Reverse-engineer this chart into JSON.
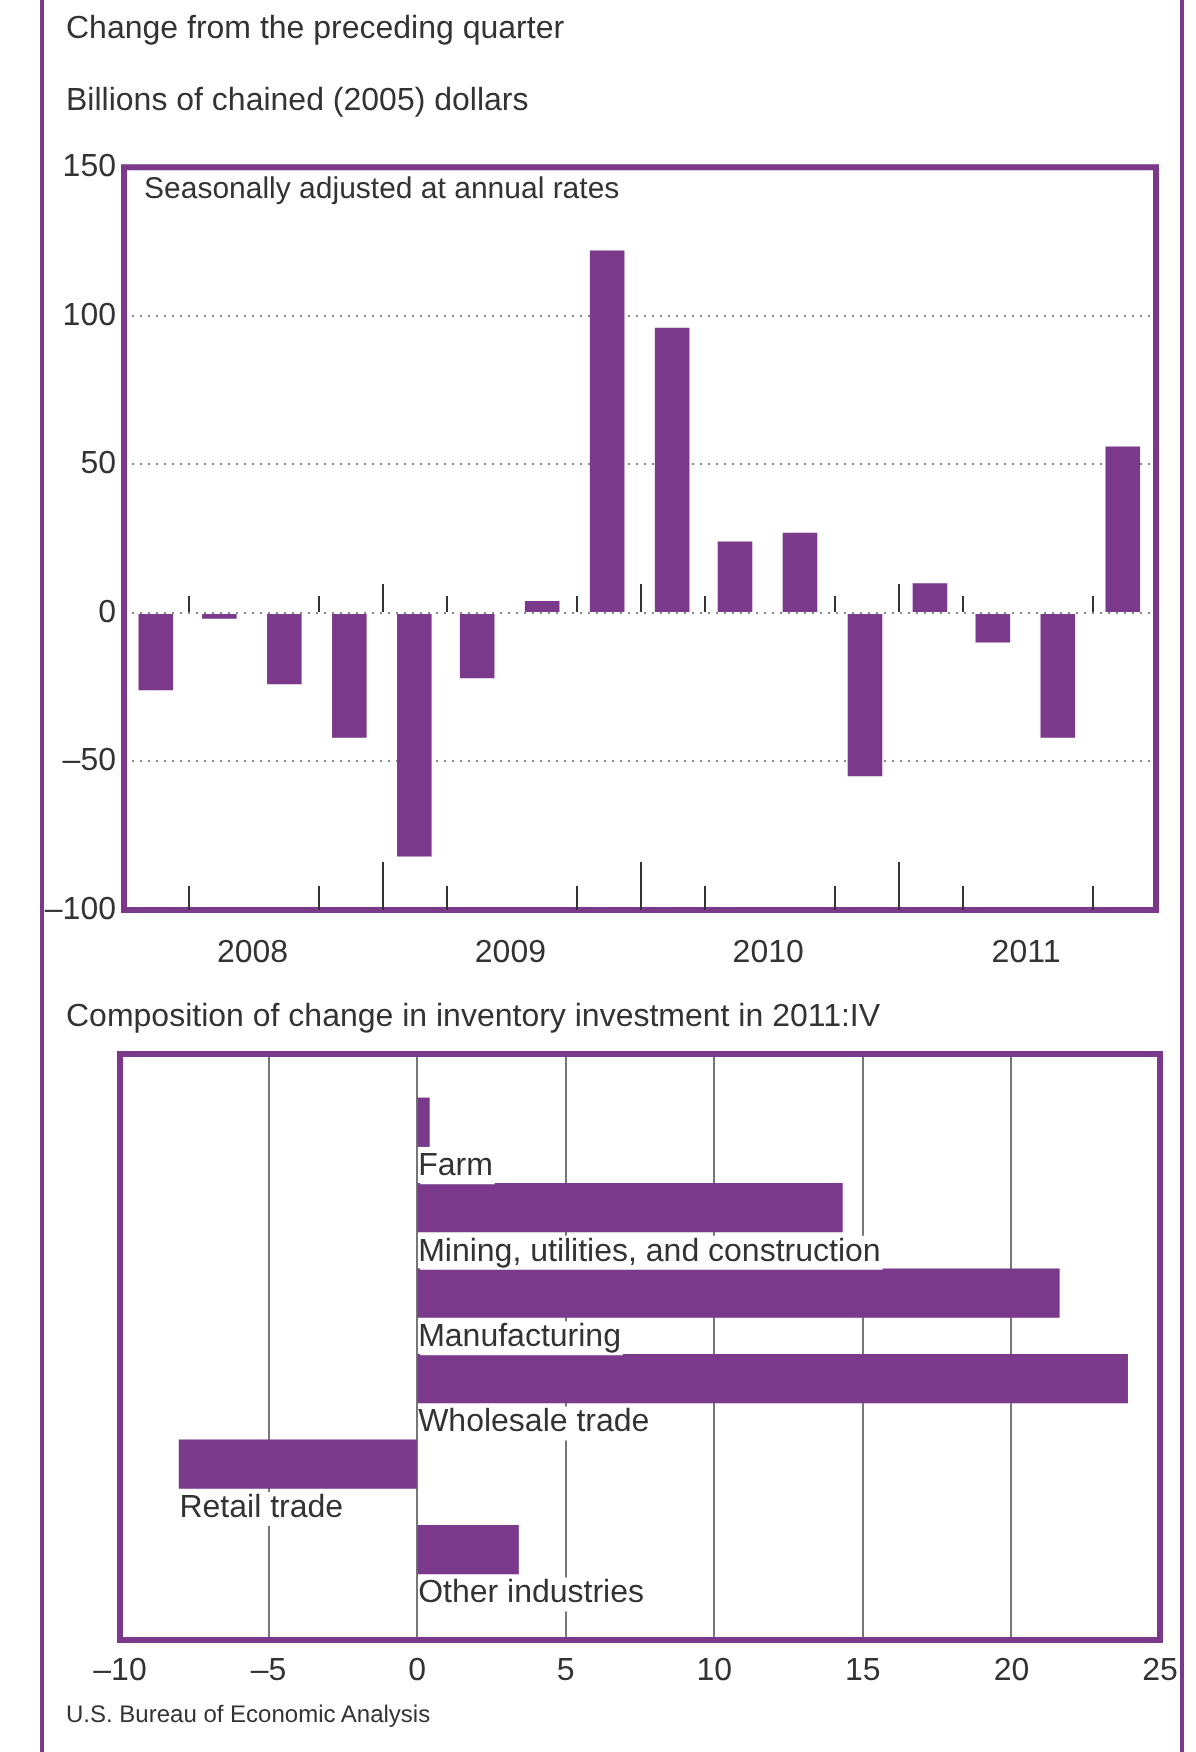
{
  "chart_data": [
    {
      "type": "bar",
      "title": "Change from the preceding quarter",
      "ylabel": "Billions of chained (2005) dollars",
      "annotations": [
        "Seasonally adjusted at annual rates"
      ],
      "x": [
        "2008-02-15",
        "2008-05-15",
        "2008-08-15",
        "2008-11-15",
        "2009-02-15",
        "2009-05-15",
        "2009-08-15",
        "2009-11-15",
        "2010-02-15",
        "2010-05-15",
        "2010-08-15",
        "2010-11-15",
        "2011-02-15",
        "2011-05-15",
        "2011-08-15",
        "2011-11-15"
      ],
      "xlim": [
        "2008-01-01",
        "2012-01-01"
      ],
      "xticks": [
        {
          "value": "2008-04-01",
          "label": null
        },
        {
          "value": "2008-07-01",
          "label": "2008"
        },
        {
          "value": "2008-10-01",
          "label": null
        },
        {
          "value": "2009-01-01",
          "label": null
        },
        {
          "value": "2009-04-01",
          "label": null
        },
        {
          "value": "2009-07-01",
          "label": "2009"
        },
        {
          "value": "2009-10-01",
          "label": null
        },
        {
          "value": "2010-01-01",
          "label": null
        },
        {
          "value": "2010-04-01",
          "label": null
        },
        {
          "value": "2010-07-01",
          "label": "2010"
        },
        {
          "value": "2010-10-01",
          "label": null
        },
        {
          "value": "2011-01-01",
          "label": null
        },
        {
          "value": "2011-04-01",
          "label": null
        },
        {
          "value": "2011-07-01",
          "label": "2011"
        },
        {
          "value": "2011-10-01",
          "label": null
        }
      ],
      "values": [
        -26,
        -2,
        -24,
        -42,
        -82,
        -22,
        4,
        122,
        96,
        24,
        27,
        -55,
        10,
        -10,
        -42,
        56
      ],
      "color": "#7b398b",
      "ylim": [
        -100,
        150
      ],
      "yticks": [
        {
          "value": -100,
          "label": "–100"
        },
        {
          "value": -50,
          "label": "–50"
        },
        0,
        50,
        100,
        150
      ],
      "grid": "y",
      "legend": false
    },
    {
      "type": "bar",
      "orientation": "horizontal",
      "title": "Composition of change in inventory investment in 2011:IV",
      "annotations": [
        "U.S. Bureau of Economic Analysis"
      ],
      "categories": [
        "Farm",
        "Mining, utilities, and construction",
        "Manufacturing",
        "Wholesale trade",
        "Retail trade",
        "Other industries"
      ],
      "values": [
        0.4,
        14.3,
        21.6,
        23.9,
        -8.0,
        3.4
      ],
      "color": "#7b398b",
      "xlim": [
        -10,
        25
      ],
      "xticks": [
        {
          "value": -10,
          "label": "–10"
        },
        {
          "value": -5,
          "label": "–5"
        },
        0,
        5,
        10,
        15,
        20,
        25
      ],
      "grid": "x",
      "legend": false
    }
  ]
}
